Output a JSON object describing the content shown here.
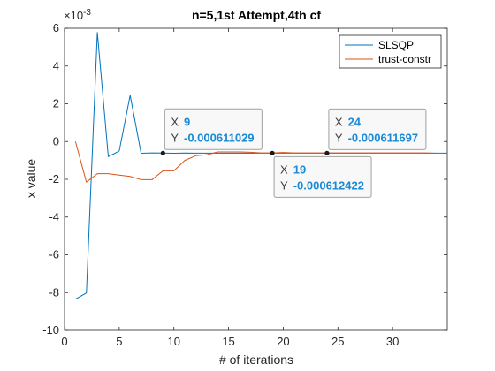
{
  "chart_data": {
    "type": "line",
    "title": "n=5,1st Attempt,4th cf",
    "xlabel": "# of iterations",
    "ylabel": "x value",
    "exponent_label": "×10",
    "exponent_power": "-3",
    "xlim": [
      0,
      35
    ],
    "ylim": [
      -10,
      6
    ],
    "xticks": [
      0,
      5,
      10,
      15,
      20,
      25,
      30
    ],
    "yticks": [
      -10,
      -8,
      -6,
      -4,
      -2,
      0,
      2,
      4,
      6
    ],
    "grid": false,
    "legend_position": "top-right",
    "series": [
      {
        "name": "SLSQP",
        "color": "#0072BD",
        "x": [
          1,
          2,
          3,
          4,
          5,
          6,
          7,
          8,
          9,
          10,
          11,
          12,
          13,
          14,
          15,
          16,
          17,
          18,
          19,
          20,
          21,
          22,
          23,
          24,
          25,
          26,
          27,
          28,
          29,
          30,
          31,
          32,
          33,
          34,
          35
        ],
        "y": [
          -8.35,
          -8.02,
          5.78,
          -0.8,
          -0.5,
          2.45,
          -0.62,
          -0.6,
          -0.611,
          -0.62,
          -0.61,
          -0.615,
          -0.612,
          -0.612,
          -0.6125,
          -0.6124,
          -0.6124,
          -0.6124,
          -0.6124,
          -0.6122,
          -0.6121,
          -0.612,
          -0.6118,
          -0.6117,
          -0.6117,
          -0.6117,
          -0.6117,
          -0.6117,
          -0.6117,
          -0.6117,
          -0.6117,
          -0.6117,
          -0.6117,
          -0.6117,
          -0.6117
        ]
      },
      {
        "name": "trust-constr",
        "color": "#D95319",
        "x": [
          1,
          2,
          3,
          4,
          5,
          6,
          7,
          8,
          9,
          10,
          11,
          12,
          13,
          14,
          15,
          16,
          17,
          18,
          19,
          20,
          21,
          22,
          23,
          24,
          25,
          26,
          27,
          28,
          29,
          30,
          31,
          32,
          33,
          34,
          35
        ],
        "y": [
          0.0,
          -2.15,
          -1.7,
          -1.7,
          -1.78,
          -1.85,
          -2.02,
          -2.02,
          -1.55,
          -1.55,
          -1.0,
          -0.75,
          -0.7,
          -0.55,
          -0.55,
          -0.55,
          -0.57,
          -0.6,
          -0.6,
          -0.58,
          -0.6,
          -0.6,
          -0.6,
          -0.6,
          -0.6,
          -0.6,
          -0.6,
          -0.6,
          -0.6,
          -0.6,
          -0.6,
          -0.6,
          -0.6,
          -0.62,
          -0.62
        ]
      }
    ],
    "datatips": [
      {
        "series": "SLSQP",
        "x_label": "X",
        "x": "9",
        "y_label": "Y",
        "y": "-0.000611029",
        "xv": 9,
        "yv": -0.611029,
        "placement": "above-right"
      },
      {
        "series": "SLSQP",
        "x_label": "X",
        "x": "19",
        "y_label": "Y",
        "y": "-0.000612422",
        "xv": 19,
        "yv": -0.612422,
        "placement": "below-right"
      },
      {
        "series": "SLSQP",
        "x_label": "X",
        "x": "24",
        "y_label": "Y",
        "y": "-0.000611697",
        "xv": 24,
        "yv": -0.611697,
        "placement": "above-right"
      }
    ]
  }
}
